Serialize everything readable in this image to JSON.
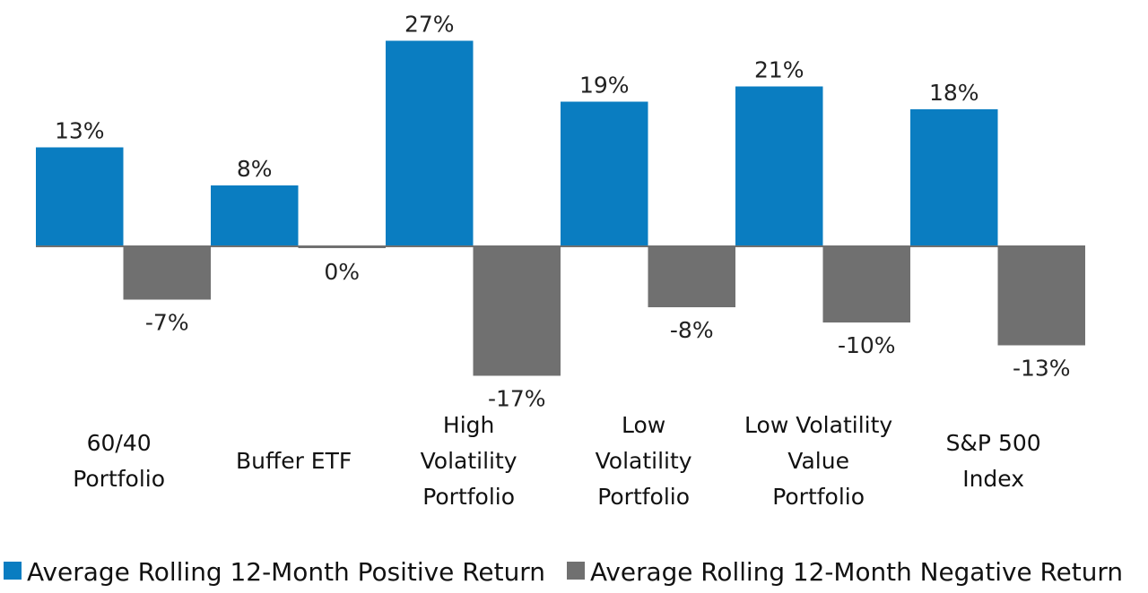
{
  "chart_data": {
    "type": "bar",
    "title": "",
    "xlabel": "",
    "ylabel": "",
    "ylim": [
      -20,
      30
    ],
    "grid": false,
    "legend_position": "bottom",
    "categories": [
      [
        "60/40",
        "Portfolio"
      ],
      [
        "Buffer ETF"
      ],
      [
        "High",
        "Volatility",
        "Portfolio"
      ],
      [
        "Low",
        "Volatility",
        "Portfolio"
      ],
      [
        "Low Volatility",
        "Value",
        "Portfolio"
      ],
      [
        "S&P 500",
        "Index"
      ]
    ],
    "series": [
      {
        "name": "Average Rolling 12-Month Positive Return",
        "color": "#0A7DC1",
        "values": [
          13,
          8,
          27,
          19,
          21,
          18
        ],
        "labels": [
          "13%",
          "8%",
          "27%",
          "19%",
          "21%",
          "18%"
        ]
      },
      {
        "name": "Average Rolling 12-Month Negative Return",
        "color": "#707070",
        "values": [
          -7,
          0,
          -17,
          -8,
          -10,
          -13
        ],
        "labels": [
          "-7%",
          "0%",
          "-17%",
          "-8%",
          "-10%",
          "-13%"
        ]
      }
    ]
  }
}
